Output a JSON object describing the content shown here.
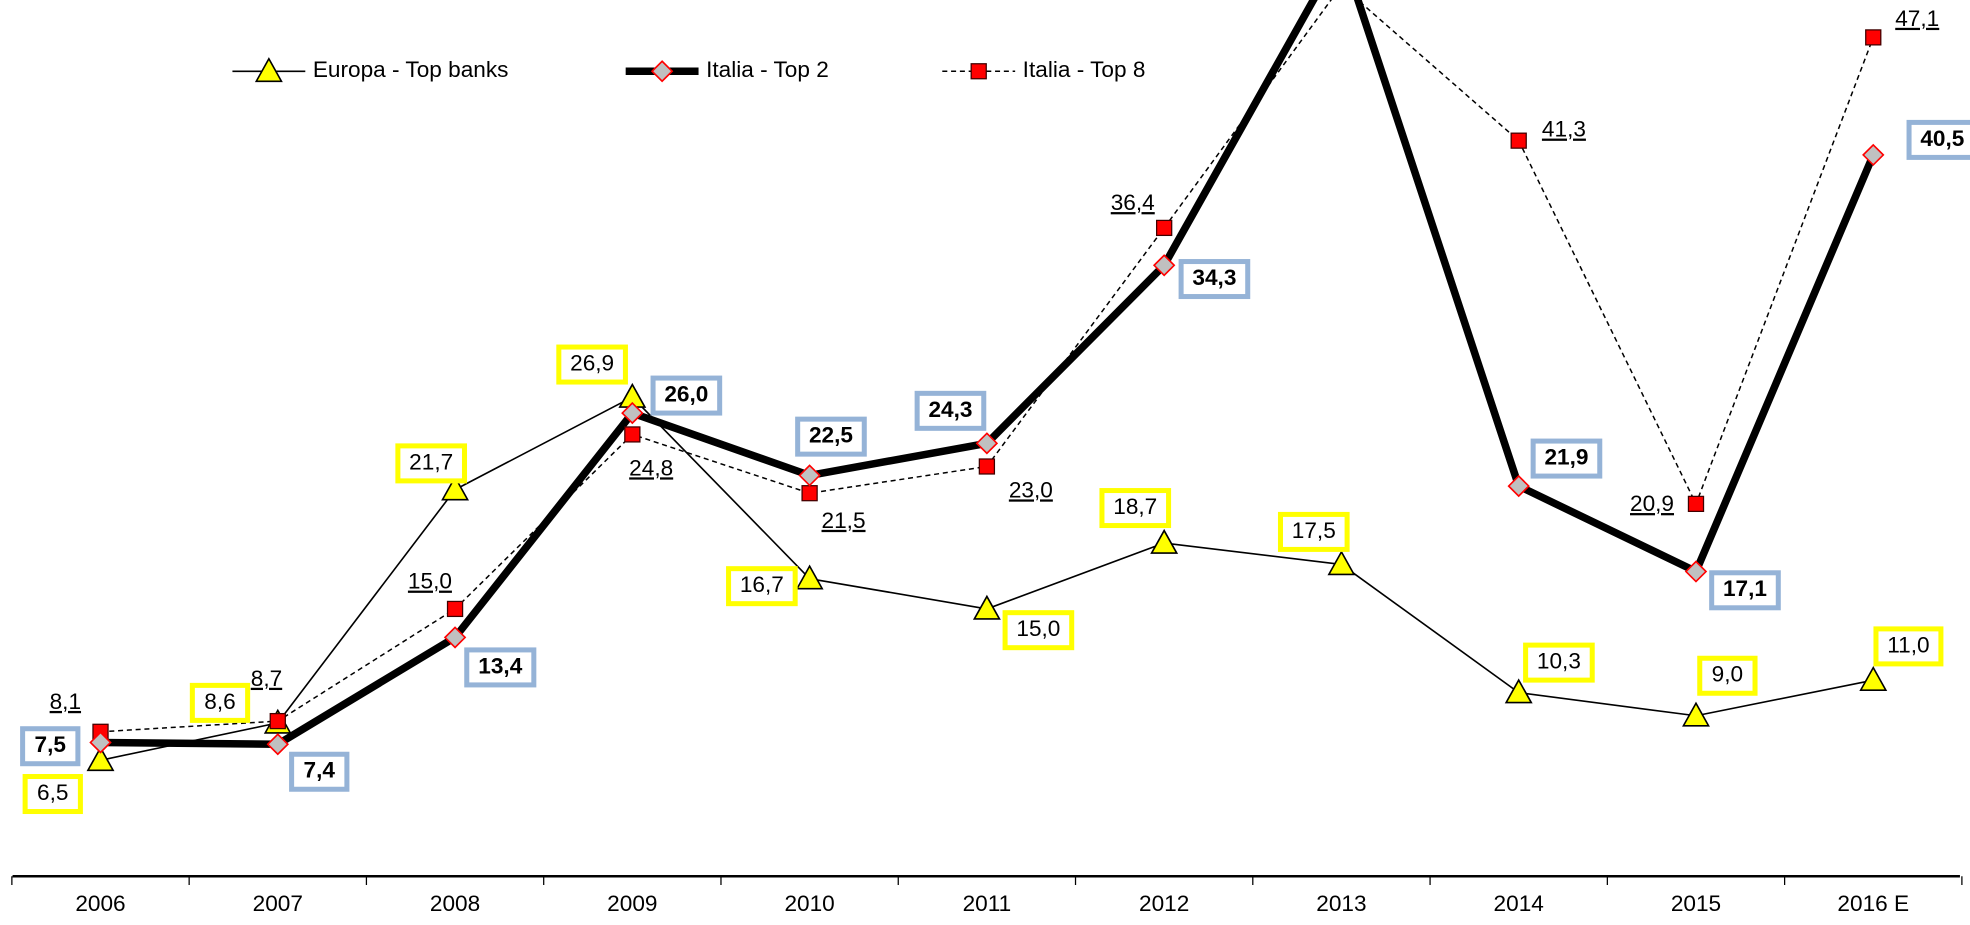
{
  "chart_data": {
    "type": "line",
    "categories": [
      "2006",
      "2007",
      "2008",
      "2009",
      "2010",
      "2011",
      "2012",
      "2013",
      "2014",
      "2015",
      "2016 E"
    ],
    "ylim": [
      0,
      49.2
    ],
    "series": [
      {
        "name": "Europa - Top banks",
        "color": "#000000",
        "marker_color": "#ffff00",
        "values": [
          6.5,
          8.6,
          21.7,
          26.9,
          16.7,
          15.0,
          18.7,
          17.5,
          10.3,
          9.0,
          11.0
        ],
        "value_labels": [
          "6,5",
          "8,6",
          "21,7",
          "26,9",
          "16,7",
          "15,0",
          "18,7",
          "17,5",
          "10,3",
          "9,0",
          "11,0"
        ]
      },
      {
        "name": "Italia - Top 2",
        "color": "#000000",
        "marker_color": "#c0c0c0",
        "values": [
          7.5,
          7.4,
          13.4,
          26.0,
          22.5,
          24.3,
          34.3,
          52.0,
          21.9,
          17.1,
          40.5
        ],
        "value_labels": [
          "7,5",
          "7,4",
          "13,4",
          "26,0",
          "22,5",
          "24,3",
          "34,3",
          null,
          "21,9",
          "17,1",
          "40,5"
        ]
      },
      {
        "name": "Italia - Top 8",
        "color": "#000000",
        "marker_color": "#ff0000",
        "values": [
          8.1,
          8.7,
          15.0,
          24.8,
          21.5,
          23.0,
          36.4,
          50.0,
          41.3,
          20.9,
          47.1
        ],
        "value_labels": [
          "8,1",
          "8,7",
          "15,0",
          "24,8",
          "21,5",
          "23,0",
          "36,4",
          null,
          "41,3",
          "20,9",
          "47,1"
        ]
      }
    ]
  }
}
